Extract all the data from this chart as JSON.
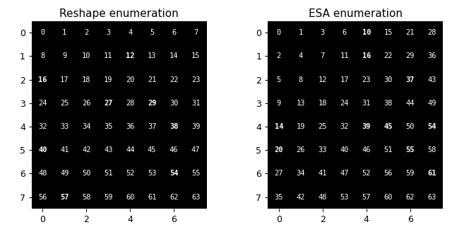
{
  "reshape_title": "Reshape enumeration",
  "esa_title": "ESA enumeration",
  "reshape_grid": [
    [
      0,
      1,
      2,
      3,
      4,
      5,
      6,
      7
    ],
    [
      8,
      9,
      10,
      11,
      12,
      13,
      14,
      15
    ],
    [
      16,
      17,
      18,
      19,
      20,
      21,
      22,
      23
    ],
    [
      24,
      25,
      26,
      27,
      28,
      29,
      30,
      31
    ],
    [
      32,
      33,
      34,
      35,
      36,
      37,
      38,
      39
    ],
    [
      40,
      41,
      42,
      43,
      44,
      45,
      46,
      47
    ],
    [
      48,
      49,
      50,
      51,
      52,
      53,
      54,
      55
    ],
    [
      56,
      57,
      58,
      59,
      60,
      61,
      62,
      63
    ]
  ],
  "esa_grid": [
    [
      0,
      1,
      3,
      6,
      10,
      15,
      21,
      28
    ],
    [
      2,
      4,
      7,
      11,
      16,
      22,
      29,
      36
    ],
    [
      5,
      8,
      12,
      17,
      23,
      30,
      37,
      43
    ],
    [
      9,
      13,
      18,
      24,
      31,
      38,
      44,
      49
    ],
    [
      14,
      19,
      25,
      32,
      39,
      45,
      50,
      54
    ],
    [
      20,
      26,
      33,
      40,
      46,
      51,
      55,
      58
    ],
    [
      27,
      34,
      41,
      47,
      52,
      56,
      59,
      61
    ],
    [
      35,
      42,
      48,
      53,
      57,
      60,
      62,
      63
    ]
  ],
  "reshape_bold": [
    [
      0,
      0,
      0,
      0,
      0,
      0,
      0,
      0
    ],
    [
      0,
      0,
      0,
      0,
      1,
      0,
      0,
      0
    ],
    [
      1,
      0,
      0,
      0,
      0,
      0,
      0,
      0
    ],
    [
      0,
      0,
      0,
      1,
      0,
      1,
      0,
      0
    ],
    [
      0,
      0,
      0,
      0,
      0,
      0,
      1,
      0
    ],
    [
      1,
      0,
      0,
      0,
      0,
      0,
      0,
      0
    ],
    [
      0,
      0,
      0,
      0,
      0,
      0,
      1,
      0
    ],
    [
      0,
      1,
      0,
      0,
      0,
      0,
      0,
      0
    ]
  ],
  "esa_bold": [
    [
      0,
      0,
      0,
      0,
      1,
      0,
      0,
      0
    ],
    [
      0,
      0,
      0,
      0,
      1,
      0,
      0,
      0
    ],
    [
      0,
      0,
      0,
      0,
      0,
      0,
      1,
      0
    ],
    [
      0,
      0,
      0,
      0,
      0,
      0,
      0,
      0
    ],
    [
      1,
      0,
      0,
      0,
      1,
      1,
      0,
      1
    ],
    [
      1,
      0,
      0,
      0,
      0,
      0,
      1,
      0
    ],
    [
      0,
      0,
      0,
      0,
      0,
      0,
      0,
      1
    ],
    [
      0,
      0,
      0,
      0,
      0,
      0,
      0,
      0
    ]
  ],
  "bg_color": "#000000",
  "text_color": "#ffffff",
  "title_color": "#000000",
  "grid_size": 8,
  "fontsize": 7.5,
  "title_fontsize": 11,
  "tick_fontsize": 9
}
